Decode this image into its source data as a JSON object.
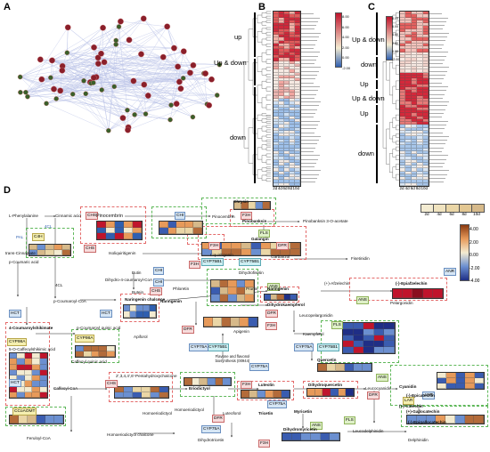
{
  "panels": {
    "a": "A",
    "b": "B",
    "c": "C",
    "d": "D"
  },
  "panel_b": {
    "groups": [
      "up",
      "Up & down",
      "down"
    ],
    "columns": [
      "2d",
      "4d",
      "6d",
      "8d",
      "10d"
    ],
    "scale": [
      "8.00",
      "6.00",
      "4.00",
      "2.00",
      "0.00",
      "-2.00"
    ]
  },
  "panel_c": {
    "groups": [
      "Up & down",
      "down",
      "Up",
      "Up & down",
      "Up",
      "down"
    ],
    "columns": [
      "2d",
      "4d",
      "6d",
      "8d",
      "10d"
    ],
    "scale": [
      "8.00",
      "6.00",
      "4.00",
      "2.00",
      "0.00",
      "-2.00"
    ]
  },
  "legend_d": {
    "columns": [
      "2d",
      "4d",
      "6d",
      "8d",
      "10d"
    ],
    "scale": [
      "4.00",
      "2.00",
      "0.00",
      "-2.00",
      "-4.00"
    ]
  },
  "enzymes": {
    "chs1": "CHS",
    "chi1": "CHI",
    "f3h1": "F3H",
    "chs2": "CHS",
    "c4h": "C4H",
    "chi2": "CHI",
    "chi3": "CHI",
    "chs3": "CHS",
    "pal": "PAL",
    "4cl1": "4CL",
    "4cl2": "4CL",
    "hct1": "HCT",
    "hct2": "HCT",
    "hct3": "HCT",
    "c3h": "C3H",
    "cyp98a_1": "CYP98A",
    "cyp98a_2": "CYP98A",
    "dfr1": "DFR",
    "dfr2": "DFR",
    "dfr3": "DFR",
    "dfr4": "DFR",
    "dfr5": "DFR",
    "fls1": "FLS",
    "fls2": "FLS",
    "fls3": "FLS",
    "f3h2": "F3H",
    "f3h3": "F3H",
    "f3h4": "F3H",
    "f3h5": "F3H",
    "f3h6": "F3H",
    "cyp75b1_1": "CYP75B1",
    "cyp75b1_2": "CYP75B1",
    "cyp75b1_3": "CYP75B1",
    "cyp75b1_4": "CYP75B1",
    "cyp75a1": "CYP75A",
    "cyp75a2": "CYP75A",
    "cyp75a3": "CYP75A",
    "cyp75a4": "CYP75A",
    "cyp75a5": "CYP75A",
    "ans1": "ANS",
    "ans2": "ANS",
    "ans3": "ANS",
    "ans4": "ANS",
    "anr1": "ANR",
    "anr2": "ANR",
    "lar": "LAR",
    "ccoaomt": "CCoAOMT",
    "chs4": "CHS"
  },
  "compounds": {
    "l_phe": "L-Phenylalanine",
    "cinnamic": "Cinnamic acid",
    "trans_cin": "trans-Cinnamate",
    "p_coum": "p-Coumaric acid",
    "p_coum_coa": "p-Coumaroyl-CoA",
    "pinocembrin_l": "Pinocembrin",
    "pinocembrin": "Pinocembrin",
    "pinobanksin": "Pinobanksin",
    "pinobanksin_ac": "Pinobanksin 3-O-acetate",
    "galangin": "Galangin",
    "chrysin": "Chrysin",
    "isoliq": "Isoliquiritigenin",
    "liquiritigenin": "Liquiritigenin",
    "garbanzol": "Garbanzol",
    "butin": "Butin",
    "dihydrofisetin": "Dihydrofisetin",
    "fisetinidin": "Fisetinidin",
    "butein": "Butein",
    "dihydro_coum": "Dihydro-4-coumaroyl-CoA",
    "phloretin": "Phloretin",
    "naringenin_ch": "Naringenin chalcone",
    "naringenin": "Naringenin",
    "naringenin2": "Naringenin",
    "prunin": "Prunin",
    "dihydrokaempferol": "Dihydrokaempferol",
    "kaempferol": "Kaempferol",
    "afzelechin": "(+)-Afzelechin",
    "leucopelargonidin": "Leucopelargonidin",
    "pelargonidin": "Pelargonidin",
    "epiafzelechin": "(-)-Epiafzelechin",
    "apigenin": "Apigenin",
    "coum_shik": "4-Coumaroylshikimate",
    "p_coum_quinic": "p-Coumaroyl quinic acid",
    "apiforol": "Apiforol",
    "caffeoyl_shik": "5-O-Caffeoylshikimic acid",
    "caffeoyl_coa": "Caffeoyl-CoA",
    "caffeoyl_quinic": "Caffeoyl quinic acid",
    "chalcone2": "2',3,4,4',6'-Pentahydroxychalcone",
    "eriodictyol": "Eriodictyol",
    "flavone_text": "Flavone and flavonol biosynthesis (00944)",
    "luteolin": "Luteolin",
    "quercetin": "Quercetin",
    "dihydroquercetin": "Dihydroquercetin",
    "leucocyanidin": "Leucocyanidin",
    "cyanidin": "Cyanidin",
    "catechin": "(+)-Catechin",
    "epicatechin": "(-)-Epicatechin",
    "myricetin": "Myricetin",
    "tricetin": "Tricetin",
    "dihydromyricetin": "Dihydromyricetin",
    "leucodelphinidin": "Leucodelphinidin",
    "gallocatechin": "(+)-Gallocatechin",
    "epigallocatechin": "(-)-Epigallocatechin",
    "delphinidin": "Delphinidin",
    "homoeriodictyol": "Homoeriodictyol",
    "homoeriodictyol_ch": "Homoeriodictyol chalcone",
    "feruloyl_coa": "Feruloyl-CoA",
    "dihydrotricetin": "Dihydrotricetin",
    "luteoforol": "Luteoforol",
    "homoerio_left": "Homoeriodictyol"
  },
  "colors": {
    "red": "#c0142c",
    "dark_red": "#8a0e1f",
    "blue": "#2f5fb0",
    "light_blue": "#a9c6e8",
    "pale": "#f3ebd1",
    "tan": "#d6b98a",
    "orange": "#e79a5a",
    "navy": "#1f2e86"
  }
}
